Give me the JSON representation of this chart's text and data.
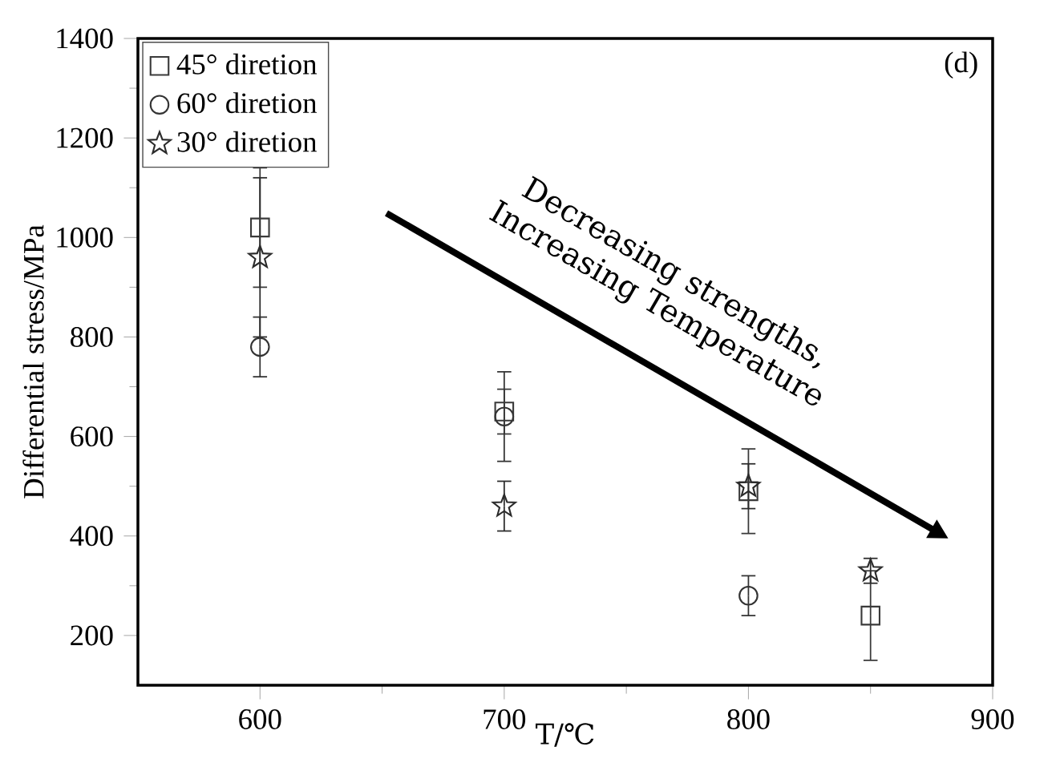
{
  "chart_data": {
    "type": "scatter",
    "title": "(d)",
    "xlabel": "T/℃",
    "ylabel": "Differential stress/MPa",
    "x": [
      600,
      700,
      800,
      850
    ],
    "series": [
      {
        "name": "45° diretion",
        "color": "#3a3a3a",
        "marker": "square",
        "values": [
          1020,
          650,
          490,
          240
        ],
        "errors": [
          120,
          45,
          85,
          90
        ]
      },
      {
        "name": "60° diretion",
        "color": "#333333",
        "marker": "circle",
        "values": [
          780,
          640,
          280,
          null
        ],
        "errors": [
          60,
          90,
          40,
          null
        ]
      },
      {
        "name": "30° diretion",
        "color": "#2b2b2b",
        "marker": "star",
        "values": [
          960,
          460,
          500,
          330
        ],
        "errors": [
          160,
          50,
          45,
          25
        ]
      }
    ],
    "xlim": [
      550,
      900
    ],
    "xticks": [
      600,
      700,
      800,
      900
    ],
    "ylim": [
      100,
      1400
    ],
    "yticks": [
      200,
      400,
      600,
      800,
      1000,
      1200,
      1400
    ],
    "legend": "top left",
    "annotations": [
      "Decreasing strengths, Increasing Temperature"
    ]
  }
}
